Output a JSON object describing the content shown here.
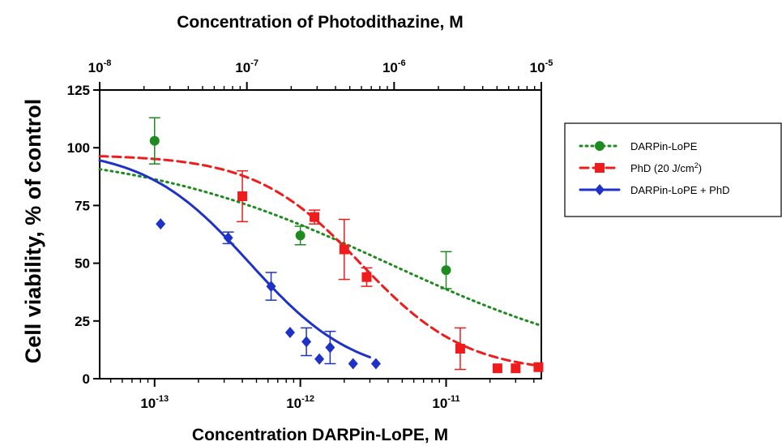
{
  "chart_data": {
    "type": "scatter",
    "title": "",
    "xlabel": "Concentration DARPin-LoPE, M",
    "x2label": "Concentration of Photodithazine, M",
    "ylabel": "Cell viability, % of control",
    "x_scale": "log",
    "xlim": [
      4.2e-14,
      4.5e-11
    ],
    "x2lim": [
      1e-08,
      1e-05
    ],
    "ylim": [
      0,
      125
    ],
    "y_ticks": [
      "0",
      "25",
      "50",
      "75",
      "100",
      "125"
    ],
    "x_tick_labels": [
      {
        "base": "10",
        "exp": "-13"
      },
      {
        "base": "10",
        "exp": "-12"
      },
      {
        "base": "10",
        "exp": "-11"
      }
    ],
    "x2_tick_labels": [
      {
        "base": "10",
        "exp": "-8"
      },
      {
        "base": "10",
        "exp": "-7"
      },
      {
        "base": "10",
        "exp": "-6"
      },
      {
        "base": "10",
        "exp": "-5"
      }
    ],
    "legend_position": "right",
    "series": [
      {
        "name": "DARPin-LoPE",
        "color": "#1f8a1f",
        "marker": "circle",
        "line": "dotted",
        "points": [
          {
            "x": 1e-13,
            "y": 103,
            "err": 10
          },
          {
            "x": 1e-12,
            "y": 62,
            "err": 4
          },
          {
            "x": 1e-11,
            "y": 47,
            "err": 8
          }
        ],
        "fit": {
          "bottom": 0,
          "top": 100,
          "ec50": 4e-12,
          "hill": 0.5
        }
      },
      {
        "name": "PhD (20 J/cm²)",
        "name_parts": {
          "text": "PhD (20 J/cm",
          "sup": "2",
          "after": ")"
        },
        "color": "#ee1c1c",
        "marker": "square",
        "line": "dashed",
        "points": [
          {
            "x": 4e-13,
            "y": 79,
            "err": 11
          },
          {
            "x": 1.25e-12,
            "y": 70,
            "err": 3
          },
          {
            "x": 2e-12,
            "y": 56,
            "err": 13
          },
          {
            "x": 2.85e-12,
            "y": 44,
            "err": 4
          },
          {
            "x": 1.25e-11,
            "y": 13,
            "err": 9
          },
          {
            "x": 2.25e-11,
            "y": 4.5,
            "err": 0
          },
          {
            "x": 3e-11,
            "y": 4.5,
            "err": 0
          },
          {
            "x": 4.3e-11,
            "y": 5,
            "err": 0
          }
        ],
        "fit": {
          "bottom": 2.5,
          "top": 97,
          "ec50": 2.6e-12,
          "hill": 1.2
        }
      },
      {
        "name": "DARPin-LoPE + PhD",
        "color": "#1f32c8",
        "marker": "diamond",
        "line": "solid",
        "points": [
          {
            "x": 1.1e-13,
            "y": 67,
            "err": 0
          },
          {
            "x": 3.2e-13,
            "y": 61,
            "err": 2.5
          },
          {
            "x": 6.3e-13,
            "y": 40,
            "err": 6
          },
          {
            "x": 8.5e-13,
            "y": 20,
            "err": 0
          },
          {
            "x": 1.1e-12,
            "y": 16,
            "err": 6
          },
          {
            "x": 1.35e-12,
            "y": 8.5,
            "err": 0
          },
          {
            "x": 1.6e-12,
            "y": 13.5,
            "err": 7
          },
          {
            "x": 2.3e-12,
            "y": 6.5,
            "err": 0
          },
          {
            "x": 3.3e-12,
            "y": 6.5,
            "err": 0
          }
        ],
        "fit": {
          "bottom": 0,
          "top": 100,
          "ec50": 4.5e-13,
          "hill": 1.2,
          "x_end": 3e-12
        }
      }
    ]
  }
}
